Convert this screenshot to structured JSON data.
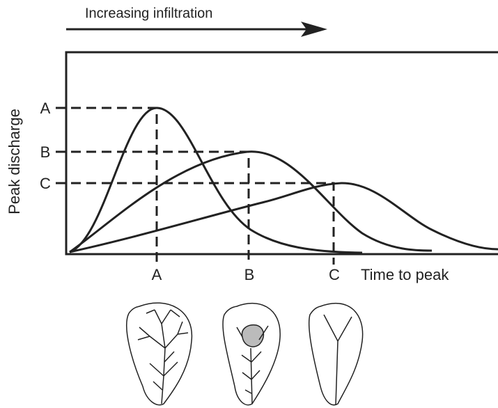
{
  "header": {
    "arrow_label": "Increasing infiltration"
  },
  "axes": {
    "y_label": "Peak discharge",
    "x_label": "Time to peak",
    "y_marks": [
      "A",
      "B",
      "C"
    ],
    "x_marks": [
      "A",
      "B",
      "C"
    ]
  }
}
